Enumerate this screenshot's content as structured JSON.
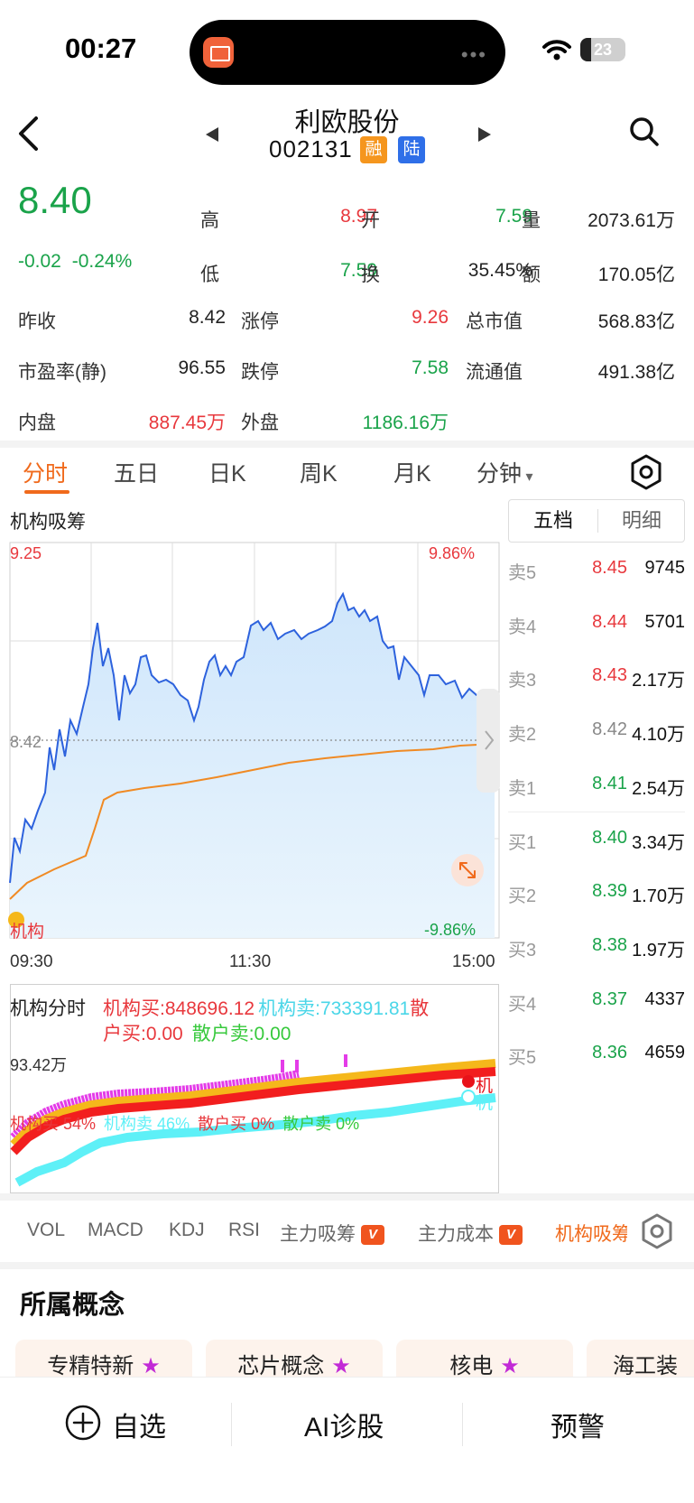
{
  "status_bar": {
    "time": "00:27",
    "battery": "23",
    "battery_level": 0.23
  },
  "header": {
    "name": "利欧股份",
    "code": "002131",
    "tag_margin": "融",
    "tag_connect": "陆"
  },
  "quote": {
    "price": "8.40",
    "change": "-0.02",
    "change_pct": "-0.24%",
    "rows": [
      [
        {
          "l": "高",
          "v": "8.97",
          "c": "red"
        },
        {
          "l": "开",
          "v": "7.59",
          "c": "green"
        },
        {
          "l": "量",
          "v": "2073.61万",
          "c": "dark"
        }
      ],
      [
        {
          "l": "低",
          "v": "7.59",
          "c": "green"
        },
        {
          "l": "换",
          "v": "35.45%",
          "c": "dark"
        },
        {
          "l": "额",
          "v": "170.05亿",
          "c": "dark"
        }
      ]
    ],
    "grid": [
      [
        {
          "l": "昨收",
          "v": "8.42",
          "c": "dark"
        },
        {
          "l": "涨停",
          "v": "9.26",
          "c": "red"
        },
        {
          "l": "总市值",
          "v": "568.83亿",
          "c": "dark"
        }
      ],
      [
        {
          "l": "市盈率(静)",
          "v": "96.55",
          "c": "dark"
        },
        {
          "l": "跌停",
          "v": "7.58",
          "c": "green"
        },
        {
          "l": "流通值",
          "v": "491.38亿",
          "c": "dark"
        }
      ],
      [
        {
          "l": "内盘",
          "v": "887.45万",
          "c": "red"
        },
        {
          "l": "外盘",
          "v": "1186.16万",
          "c": "green"
        }
      ]
    ]
  },
  "tabs": [
    "分时",
    "五日",
    "日K",
    "周K",
    "月K",
    "分钟"
  ],
  "chart": {
    "indicator_title": "机构吸筹",
    "y_high": "9.25",
    "y_mid": "8.42",
    "pct_high": "9.86%",
    "pct_low": "-9.86%",
    "corner_label": "机构",
    "times": [
      "09:30",
      "11:30",
      "15:00"
    ]
  },
  "depth": {
    "tab_five": "五档",
    "tab_detail": "明细",
    "sell": [
      {
        "label": "卖5",
        "price": "8.45",
        "vol": "9745",
        "c": "red"
      },
      {
        "label": "卖4",
        "price": "8.44",
        "vol": "5701",
        "c": "red"
      },
      {
        "label": "卖3",
        "price": "8.43",
        "vol": "2.17万",
        "c": "red"
      },
      {
        "label": "卖2",
        "price": "8.42",
        "vol": "4.10万",
        "c": "gray"
      },
      {
        "label": "卖1",
        "price": "8.41",
        "vol": "2.54万",
        "c": "green"
      }
    ],
    "buy": [
      {
        "label": "买1",
        "price": "8.40",
        "vol": "3.34万",
        "c": "green"
      },
      {
        "label": "买2",
        "price": "8.39",
        "vol": "1.70万",
        "c": "green"
      },
      {
        "label": "买3",
        "price": "8.38",
        "vol": "1.97万",
        "c": "green"
      },
      {
        "label": "买4",
        "price": "8.37",
        "vol": "4337",
        "c": "green"
      },
      {
        "label": "买5",
        "price": "8.36",
        "vol": "4659",
        "c": "green"
      }
    ]
  },
  "inst": {
    "title": "机构分时",
    "buy": "机构买:848696.12",
    "sell": "机构卖:733391.81",
    "retail_buy_a": "散",
    "retail_buy_b": "户买:0.00",
    "retail_sell": "散户卖:0.00",
    "level": "93.42万",
    "pct_inst_buy": "机构买 54%",
    "pct_inst_sell": "机构卖 46%",
    "pct_retail_buy": "散户买 0%",
    "pct_retail_sell": "散户卖 0%",
    "legend_buy": "机",
    "legend_sell": "机"
  },
  "indicator_tabs": [
    "VOL",
    "MACD",
    "KDJ",
    "RSI",
    "主力吸筹",
    "主力成本",
    "机构吸筹"
  ],
  "vip_label": "V",
  "concepts_title": "所属概念",
  "concepts": [
    "专精特新",
    "芯片概念",
    "核电",
    "海工装"
  ],
  "bottom": {
    "watch": "自选",
    "ai": "AI诊股",
    "alert": "预警"
  },
  "colors": {
    "up": "#e8383d",
    "down": "#1aa34a",
    "accent": "#f06a1c",
    "price_line": "#2d62dd",
    "avg_line": "#f08a24"
  }
}
